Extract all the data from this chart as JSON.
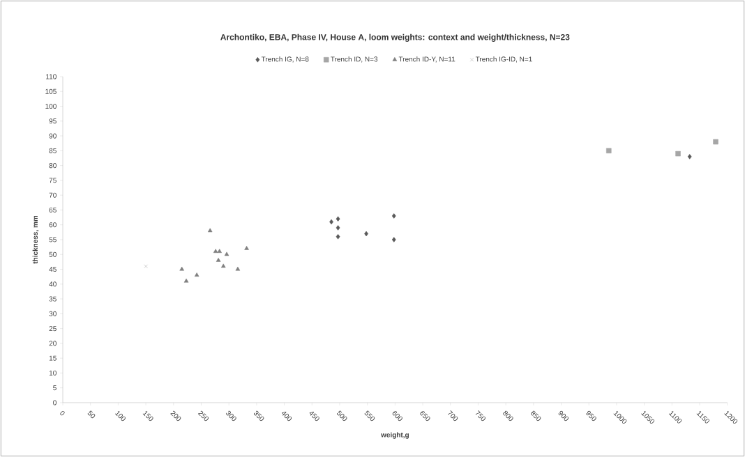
{
  "chart_data": {
    "type": "scatter",
    "title": "Archontiko, EBA, Phase IV, House A, loom weights: context and weight/thickness, N=23",
    "xlabel": "weight,g",
    "ylabel": "thickness, mm",
    "series": [
      {
        "name": "Trench IG, N=8",
        "color": "#595959",
        "marker": "diamond",
        "x": [
          485,
          497,
          497,
          497,
          548,
          598,
          598,
          1132
        ],
        "values": [
          61,
          62,
          59,
          56,
          57,
          63,
          55,
          83
        ]
      },
      {
        "name": "Trench ID, N=3",
        "color": "#a6a6a6",
        "marker": "square",
        "x": [
          986,
          1111,
          1179
        ],
        "values": [
          85,
          84,
          88
        ]
      },
      {
        "name": "Trench ID-Y, N=11",
        "color": "#808080",
        "marker": "triangle",
        "x": [
          215,
          223,
          242,
          266,
          276,
          283,
          296,
          281,
          290,
          316,
          332
        ],
        "values": [
          45,
          41,
          43,
          58,
          51,
          51,
          50,
          48,
          46,
          45,
          52
        ]
      },
      {
        "name": "Trench IG-ID, N=1",
        "color": "#a6a6a6",
        "marker": "cross",
        "x": [
          150
        ],
        "values": [
          46
        ]
      }
    ],
    "xlim": [
      0,
      1200
    ],
    "ylim": [
      0,
      110
    ],
    "xticks": [
      0,
      50,
      100,
      150,
      200,
      250,
      300,
      350,
      400,
      450,
      500,
      550,
      600,
      650,
      700,
      750,
      800,
      850,
      900,
      950,
      1000,
      1050,
      1100,
      1150,
      1200
    ],
    "yticks": [
      0,
      5,
      10,
      15,
      20,
      25,
      30,
      35,
      40,
      45,
      50,
      55,
      60,
      65,
      70,
      75,
      80,
      85,
      90,
      95,
      100,
      105,
      110
    ],
    "grid": false,
    "legend": "top"
  }
}
